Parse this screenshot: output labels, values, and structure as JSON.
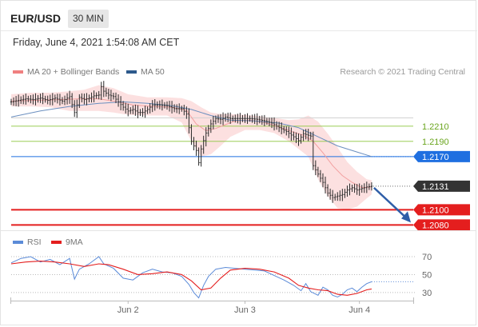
{
  "header": {
    "symbol": "EUR/USD",
    "timeframe": "30 MIN",
    "datetime": "Friday, June 4, 2021 1:54:08 AM CET"
  },
  "chart_data": [
    {
      "type": "line",
      "legend": [
        {
          "label": "MA 20 + Bollinger Bands",
          "color": "#f08080"
        },
        {
          "label": "MA 50",
          "color": "#2d5a8c"
        }
      ],
      "credit": "Research © 2021 Trading Central",
      "ylim": [
        1.2073,
        1.2274
      ],
      "y_reference": 1.221,
      "x_range": [
        0,
        150
      ],
      "price_series": [
        [
          0,
          1.2242
        ],
        [
          3,
          1.2244
        ],
        [
          6,
          1.2246
        ],
        [
          9,
          1.2245
        ],
        [
          12,
          1.2247
        ],
        [
          15,
          1.2244
        ],
        [
          18,
          1.2247
        ],
        [
          21,
          1.2243
        ],
        [
          24,
          1.2249
        ],
        [
          26,
          1.2228
        ],
        [
          28,
          1.2248
        ],
        [
          30,
          1.2245
        ],
        [
          32,
          1.2247
        ],
        [
          34,
          1.225
        ],
        [
          36,
          1.2251
        ],
        [
          37,
          1.2262
        ],
        [
          38,
          1.2256
        ],
        [
          40,
          1.2251
        ],
        [
          42,
          1.2249
        ],
        [
          44,
          1.2242
        ],
        [
          46,
          1.2235
        ],
        [
          48,
          1.223
        ],
        [
          50,
          1.2232
        ],
        [
          52,
          1.2228
        ],
        [
          54,
          1.2228
        ],
        [
          56,
          1.2232
        ],
        [
          58,
          1.2238
        ],
        [
          61,
          1.2238
        ],
        [
          64,
          1.2237
        ],
        [
          67,
          1.2233
        ],
        [
          70,
          1.2233
        ],
        [
          72,
          1.2226
        ],
        [
          74,
          1.219
        ],
        [
          76,
          1.2178
        ],
        [
          77,
          1.2162
        ],
        [
          78,
          1.218
        ],
        [
          79,
          1.2191
        ],
        [
          80,
          1.2201
        ],
        [
          82,
          1.2213
        ],
        [
          84,
          1.222
        ],
        [
          86,
          1.2219
        ],
        [
          88,
          1.2222
        ],
        [
          90,
          1.222
        ],
        [
          92,
          1.222
        ],
        [
          94,
          1.222
        ],
        [
          96,
          1.222
        ],
        [
          98,
          1.222
        ],
        [
          101,
          1.2219
        ],
        [
          104,
          1.2217
        ],
        [
          107,
          1.2214
        ],
        [
          110,
          1.2208
        ],
        [
          113,
          1.2203
        ],
        [
          116,
          1.2196
        ],
        [
          118,
          1.2191
        ],
        [
          120,
          1.22
        ],
        [
          123,
          1.2197
        ],
        [
          124,
          1.2158
        ],
        [
          126,
          1.2147
        ],
        [
          128,
          1.2136
        ],
        [
          130,
          1.2122
        ],
        [
          132,
          1.2116
        ],
        [
          134,
          1.2118
        ],
        [
          136,
          1.212
        ],
        [
          138,
          1.2126
        ],
        [
          140,
          1.2129
        ],
        [
          142,
          1.2126
        ],
        [
          144,
          1.2128
        ],
        [
          146,
          1.213
        ],
        [
          148,
          1.2131
        ]
      ],
      "ma20": [
        [
          0,
          1.2243
        ],
        [
          10,
          1.2244
        ],
        [
          20,
          1.2245
        ],
        [
          28,
          1.2246
        ],
        [
          36,
          1.2246
        ],
        [
          42,
          1.2243
        ],
        [
          50,
          1.2238
        ],
        [
          58,
          1.2236
        ],
        [
          66,
          1.2235
        ],
        [
          72,
          1.2231
        ],
        [
          76,
          1.2213
        ],
        [
          80,
          1.2204
        ],
        [
          84,
          1.2207
        ],
        [
          88,
          1.2212
        ],
        [
          92,
          1.2217
        ],
        [
          98,
          1.2218
        ],
        [
          104,
          1.2215
        ],
        [
          110,
          1.2209
        ],
        [
          116,
          1.2202
        ],
        [
          120,
          1.2198
        ],
        [
          124,
          1.219
        ],
        [
          128,
          1.2175
        ],
        [
          132,
          1.2158
        ],
        [
          136,
          1.2145
        ],
        [
          140,
          1.2136
        ],
        [
          144,
          1.2129
        ],
        [
          148,
          1.213
        ]
      ],
      "bb_upper": [
        [
          0,
          1.2252
        ],
        [
          8,
          1.2254
        ],
        [
          16,
          1.2254
        ],
        [
          24,
          1.2256
        ],
        [
          30,
          1.2258
        ],
        [
          36,
          1.2264
        ],
        [
          42,
          1.226
        ],
        [
          48,
          1.2252
        ],
        [
          56,
          1.2248
        ],
        [
          64,
          1.2248
        ],
        [
          70,
          1.2247
        ],
        [
          74,
          1.2243
        ],
        [
          78,
          1.2235
        ],
        [
          82,
          1.2228
        ],
        [
          86,
          1.2226
        ],
        [
          90,
          1.2226
        ],
        [
          96,
          1.2225
        ],
        [
          102,
          1.2223
        ],
        [
          108,
          1.2221
        ],
        [
          114,
          1.2218
        ],
        [
          118,
          1.2219
        ],
        [
          122,
          1.2224
        ],
        [
          126,
          1.2216
        ],
        [
          130,
          1.22
        ],
        [
          134,
          1.2182
        ],
        [
          138,
          1.2163
        ],
        [
          142,
          1.215
        ],
        [
          146,
          1.214
        ],
        [
          148,
          1.2139
        ]
      ],
      "bb_lower": [
        [
          0,
          1.2236
        ],
        [
          8,
          1.2236
        ],
        [
          16,
          1.2235
        ],
        [
          24,
          1.223
        ],
        [
          30,
          1.223
        ],
        [
          36,
          1.223
        ],
        [
          42,
          1.2228
        ],
        [
          48,
          1.2225
        ],
        [
          56,
          1.2224
        ],
        [
          64,
          1.2224
        ],
        [
          70,
          1.2215
        ],
        [
          74,
          1.219
        ],
        [
          78,
          1.217
        ],
        [
          82,
          1.2173
        ],
        [
          86,
          1.2184
        ],
        [
          90,
          1.2196
        ],
        [
          96,
          1.2205
        ],
        [
          102,
          1.2205
        ],
        [
          108,
          1.2201
        ],
        [
          114,
          1.219
        ],
        [
          118,
          1.218
        ],
        [
          122,
          1.217
        ],
        [
          126,
          1.214
        ],
        [
          130,
          1.2118
        ],
        [
          134,
          1.2102
        ],
        [
          138,
          1.21
        ],
        [
          142,
          1.2104
        ],
        [
          146,
          1.2115
        ],
        [
          148,
          1.212
        ]
      ],
      "ma50": [
        [
          0,
          1.2222
        ],
        [
          12,
          1.223
        ],
        [
          24,
          1.2236
        ],
        [
          36,
          1.224
        ],
        [
          46,
          1.2242
        ],
        [
          56,
          1.224
        ],
        [
          66,
          1.2237
        ],
        [
          74,
          1.2232
        ],
        [
          82,
          1.2224
        ],
        [
          90,
          1.2218
        ],
        [
          100,
          1.2217
        ],
        [
          110,
          1.2214
        ],
        [
          118,
          1.2208
        ],
        [
          126,
          1.2196
        ],
        [
          134,
          1.2184
        ],
        [
          142,
          1.2176
        ],
        [
          148,
          1.217
        ]
      ],
      "levels": [
        {
          "label": "1.2210",
          "value": 1.221,
          "style": "resistance-line"
        },
        {
          "label": "1.2190",
          "value": 1.219,
          "style": "resistance-line"
        },
        {
          "label": "1.2170",
          "value": 1.217,
          "style": "ma50-tag"
        },
        {
          "label": "1.2131",
          "value": 1.2131,
          "style": "last-price-tag"
        },
        {
          "label": "1.2100",
          "value": 1.21,
          "style": "support-tag"
        },
        {
          "label": "1.2080",
          "value": 1.208,
          "style": "support-tag"
        }
      ],
      "colors": {
        "resistance": "#8cc63f",
        "ma50": "#2d5a8c",
        "blue_line": "#1f6fe0",
        "support": "#e41e1e",
        "last": "#333333",
        "price": "#2a2a2a",
        "band": "#fbdada",
        "ma20": "#f2a0a0",
        "arrow": "#2f5ea8"
      },
      "projection": "down"
    },
    {
      "type": "line",
      "legend": [
        {
          "label": "RSI",
          "color": "#5b8bd8"
        },
        {
          "label": "9MA",
          "color": "#e41e1e"
        }
      ],
      "ylim": [
        21,
        78
      ],
      "ref_lines": [
        {
          "label": "70",
          "value": 70
        },
        {
          "label": "50",
          "value": 50
        },
        {
          "label": "30",
          "value": 30
        }
      ],
      "rsi": [
        [
          0,
          63
        ],
        [
          4,
          68
        ],
        [
          8,
          70
        ],
        [
          12,
          64
        ],
        [
          16,
          67
        ],
        [
          20,
          61
        ],
        [
          24,
          68
        ],
        [
          26,
          45
        ],
        [
          28,
          56
        ],
        [
          32,
          62
        ],
        [
          36,
          70
        ],
        [
          38,
          62
        ],
        [
          42,
          57
        ],
        [
          46,
          46
        ],
        [
          50,
          44
        ],
        [
          54,
          52
        ],
        [
          58,
          56
        ],
        [
          62,
          53
        ],
        [
          66,
          52
        ],
        [
          70,
          48
        ],
        [
          73,
          39
        ],
        [
          75,
          30
        ],
        [
          77,
          24
        ],
        [
          79,
          38
        ],
        [
          81,
          48
        ],
        [
          84,
          56
        ],
        [
          88,
          58
        ],
        [
          92,
          57
        ],
        [
          96,
          56
        ],
        [
          100,
          55
        ],
        [
          104,
          54
        ],
        [
          108,
          49
        ],
        [
          112,
          44
        ],
        [
          116,
          38
        ],
        [
          119,
          32
        ],
        [
          121,
          40
        ],
        [
          123,
          31
        ],
        [
          126,
          27
        ],
        [
          128,
          36
        ],
        [
          130,
          33
        ],
        [
          132,
          27
        ],
        [
          134,
          25
        ],
        [
          136,
          28
        ],
        [
          138,
          33
        ],
        [
          140,
          35
        ],
        [
          142,
          31
        ],
        [
          144,
          36
        ],
        [
          146,
          40
        ],
        [
          148,
          42
        ]
      ],
      "ma9": [
        [
          0,
          62
        ],
        [
          6,
          64
        ],
        [
          12,
          65
        ],
        [
          18,
          64
        ],
        [
          24,
          62
        ],
        [
          30,
          59
        ],
        [
          36,
          62
        ],
        [
          40,
          61
        ],
        [
          46,
          56
        ],
        [
          52,
          50
        ],
        [
          58,
          51
        ],
        [
          64,
          53
        ],
        [
          70,
          50
        ],
        [
          74,
          43
        ],
        [
          78,
          33
        ],
        [
          82,
          35
        ],
        [
          86,
          46
        ],
        [
          90,
          55
        ],
        [
          96,
          57
        ],
        [
          102,
          56
        ],
        [
          108,
          53
        ],
        [
          114,
          46
        ],
        [
          118,
          38
        ],
        [
          122,
          35
        ],
        [
          126,
          33
        ],
        [
          130,
          32
        ],
        [
          134,
          28
        ],
        [
          138,
          27
        ],
        [
          142,
          29
        ],
        [
          146,
          33
        ],
        [
          148,
          34
        ]
      ]
    }
  ],
  "x_axis": {
    "ticks": [
      {
        "label": "Jun 2",
        "at": 48
      },
      {
        "label": "Jun 3",
        "at": 96
      },
      {
        "label": "Jun 4",
        "at": 143
      }
    ]
  }
}
